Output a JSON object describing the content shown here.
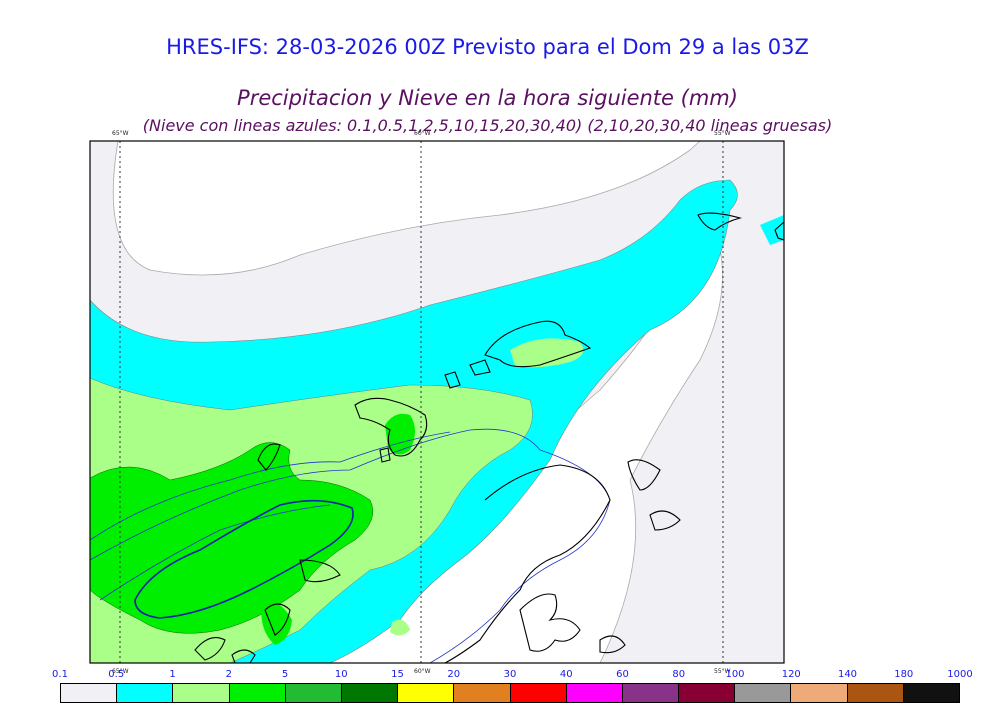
{
  "header": {
    "title": "HRES-IFS: 28-03-2026 00Z Previsto para el Dom 29 a las 03Z",
    "subtitle": "Precipitacion y Nieve en la hora siguiente (mm)",
    "note": "(Nieve con lineas azules: 0.1,0.5,1,2,5,10,15,20,30,40)  (2,10,20,30,40 lineas gruesas)"
  },
  "map": {
    "lon_labels_top": [
      "65°W",
      "60°W",
      "55°W"
    ],
    "lon_labels_bottom": [
      "65°W",
      "60°W",
      "55°W"
    ]
  },
  "colorbar": {
    "labels": [
      "0.1",
      "0.5",
      "1",
      "2",
      "5",
      "10",
      "15",
      "20",
      "30",
      "40",
      "60",
      "80",
      "100",
      "120",
      "140",
      "180",
      "1000"
    ],
    "colors": [
      "#f0f0f5",
      "#00ffff",
      "#aaff88",
      "#00ee00",
      "#22bb33",
      "#007700",
      "#ffff00",
      "#e08020",
      "#ff0000",
      "#ff00ff",
      "#883388",
      "#880033",
      "#999999",
      "#eeaa77",
      "#aa5511",
      "#111111"
    ]
  }
}
